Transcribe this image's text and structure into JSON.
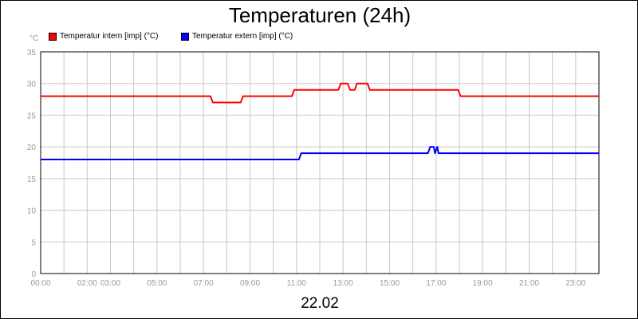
{
  "chart_data": {
    "type": "line",
    "title": "Temperaturen (24h)",
    "y_unit": "°C",
    "date_label": "22.02",
    "ylim": [
      0,
      35
    ],
    "yticks": [
      "0",
      "5",
      "10",
      "15",
      "20",
      "25",
      "30",
      "35"
    ],
    "xlim": [
      0,
      24
    ],
    "xticks": [
      {
        "t": 0,
        "label": "00:00"
      },
      {
        "t": 2,
        "label": "02:00"
      },
      {
        "t": 3,
        "label": "03:00"
      },
      {
        "t": 5,
        "label": "05:00"
      },
      {
        "t": 7,
        "label": "07:00"
      },
      {
        "t": 9,
        "label": "09:00"
      },
      {
        "t": 11,
        "label": "11:00"
      },
      {
        "t": 13,
        "label": "13:00"
      },
      {
        "t": 15,
        "label": "15:00"
      },
      {
        "t": 17,
        "label": "17:00"
      },
      {
        "t": 19,
        "label": "19:00"
      },
      {
        "t": 21,
        "label": "21:00"
      },
      {
        "t": 23,
        "label": "23:00"
      }
    ],
    "grid": true,
    "legend_position": "top-left",
    "series": [
      {
        "name": "Temperatur intern [imp] (°C)",
        "color": "#ff0000",
        "x": [
          0,
          7.3,
          7.4,
          8.6,
          8.7,
          10.8,
          10.9,
          12.8,
          12.9,
          13.2,
          13.3,
          13.5,
          13.6,
          14.05,
          14.15,
          17.95,
          18.05,
          24
        ],
        "y": [
          28,
          28,
          27,
          27,
          28,
          28,
          29,
          29,
          30,
          30,
          29,
          29,
          30,
          30,
          29,
          29,
          28,
          28
        ]
      },
      {
        "name": "Temperatur extern [imp] (°C)",
        "color": "#0000ff",
        "x": [
          0,
          11.1,
          11.2,
          16.65,
          16.75,
          16.9,
          16.95,
          17.05,
          17.1,
          24
        ],
        "y": [
          18,
          18,
          19,
          19,
          20,
          20,
          19,
          20,
          19,
          19
        ]
      }
    ]
  }
}
